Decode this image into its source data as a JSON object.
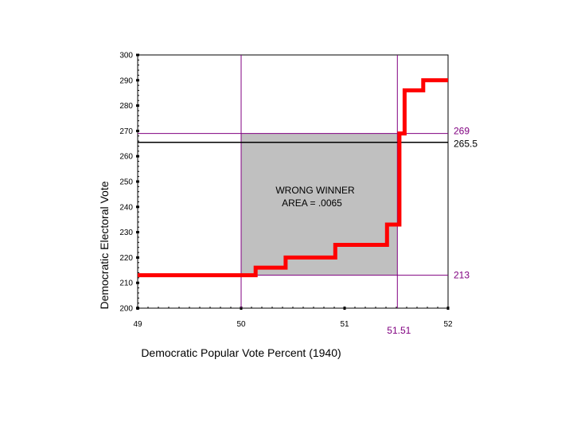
{
  "chart_data": {
    "type": "line",
    "title": "",
    "xlabel": "Democratic Popular Vote Percent (1940)",
    "ylabel": "Democratic Electoral Vote",
    "xlim": [
      49,
      52
    ],
    "ylim": [
      200,
      300
    ],
    "x_ticks": [
      49,
      50,
      51,
      52
    ],
    "y_ticks": [
      200,
      210,
      220,
      230,
      240,
      250,
      260,
      270,
      280,
      290,
      300
    ],
    "grid": false,
    "series": [
      {
        "color": "#ff0000",
        "step": true,
        "x": [
          49,
          50.14,
          50.14,
          50.43,
          50.43,
          50.91,
          50.91,
          51.41,
          51.41,
          51.53,
          51.53,
          51.58,
          51.58,
          51.76,
          51.76,
          52
        ],
        "y": [
          213,
          213,
          216,
          216,
          220,
          220,
          225,
          225,
          233,
          233,
          269,
          269,
          286,
          286,
          290,
          290
        ]
      }
    ],
    "reference_lines": {
      "horizontal": [
        {
          "value": 269,
          "label": "269",
          "color": "#800080"
        },
        {
          "value": 265.5,
          "label": "265.5",
          "color": "#000000"
        },
        {
          "value": 213,
          "label": "213",
          "color": "#800080"
        }
      ],
      "vertical": [
        {
          "value": 50,
          "color": "#800080"
        },
        {
          "value": 51.51,
          "label": "51.51",
          "color": "#800080"
        }
      ]
    },
    "shaded_region": {
      "x": [
        50,
        51.51
      ],
      "y": [
        213,
        269
      ],
      "color": "#c0c0c0",
      "annotation_lines": [
        "WRONG WINNER",
        "AREA = .0065"
      ]
    }
  }
}
